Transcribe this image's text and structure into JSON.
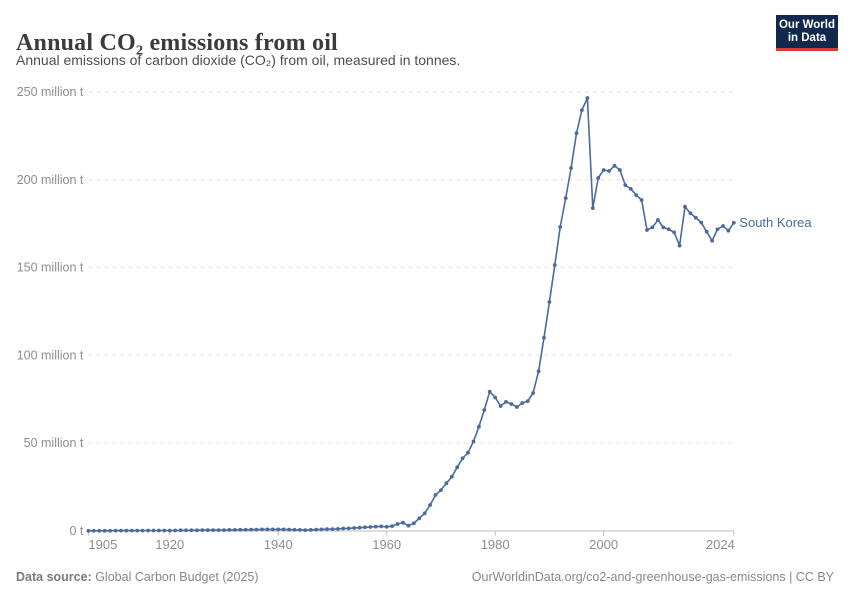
{
  "header": {
    "title": "Annual CO₂ emissions from oil",
    "subtitle": "Annual emissions of carbon dioxide (CO₂) from oil, measured in tonnes.",
    "logo": {
      "line1": "Our World",
      "line2": "in Data",
      "bg_color": "#12294d",
      "bar_color": "#dc3b33"
    }
  },
  "chart_data": {
    "type": "line",
    "title": "Annual CO₂ emissions from oil",
    "xlabel": "",
    "ylabel": "",
    "xlim": [
      1905,
      2024
    ],
    "ylim": [
      0,
      250
    ],
    "grid": true,
    "legend_position": "end-of-line",
    "x_ticks": [
      1905,
      1920,
      1940,
      1960,
      1980,
      2000,
      2024
    ],
    "y_ticks": [
      {
        "value": 0,
        "label": "0 t"
      },
      {
        "value": 50,
        "label": "50 million t"
      },
      {
        "value": 100,
        "label": "100 million t"
      },
      {
        "value": 150,
        "label": "150 million t"
      },
      {
        "value": 200,
        "label": "200 million t"
      },
      {
        "value": 250,
        "label": "250 million t"
      }
    ],
    "series": [
      {
        "name": "South Korea",
        "color": "#4c6a9c",
        "x": [
          1905,
          1906,
          1907,
          1908,
          1909,
          1910,
          1911,
          1912,
          1913,
          1914,
          1915,
          1916,
          1917,
          1918,
          1919,
          1920,
          1921,
          1922,
          1923,
          1924,
          1925,
          1926,
          1927,
          1928,
          1929,
          1930,
          1931,
          1932,
          1933,
          1934,
          1935,
          1936,
          1937,
          1938,
          1939,
          1940,
          1941,
          1942,
          1943,
          1944,
          1945,
          1946,
          1947,
          1948,
          1949,
          1950,
          1951,
          1952,
          1953,
          1954,
          1955,
          1956,
          1957,
          1958,
          1959,
          1960,
          1961,
          1962,
          1963,
          1964,
          1965,
          1966,
          1967,
          1968,
          1969,
          1970,
          1971,
          1972,
          1973,
          1974,
          1975,
          1976,
          1977,
          1978,
          1979,
          1980,
          1981,
          1982,
          1983,
          1984,
          1985,
          1986,
          1987,
          1988,
          1989,
          1990,
          1991,
          1992,
          1993,
          1994,
          1995,
          1996,
          1997,
          1998,
          1999,
          2000,
          2001,
          2002,
          2003,
          2004,
          2005,
          2006,
          2007,
          2008,
          2009,
          2010,
          2011,
          2012,
          2013,
          2014,
          2015,
          2016,
          2017,
          2018,
          2019,
          2020,
          2021,
          2022,
          2023,
          2024
        ],
        "values": [
          0.1,
          0.1,
          0.1,
          0.1,
          0.1,
          0.2,
          0.2,
          0.2,
          0.2,
          0.2,
          0.2,
          0.3,
          0.3,
          0.3,
          0.3,
          0.3,
          0.3,
          0.4,
          0.4,
          0.4,
          0.4,
          0.5,
          0.5,
          0.5,
          0.5,
          0.5,
          0.6,
          0.6,
          0.7,
          0.7,
          0.8,
          0.8,
          0.9,
          0.9,
          0.9,
          0.9,
          0.9,
          0.8,
          0.7,
          0.6,
          0.5,
          0.6,
          0.8,
          0.9,
          1.0,
          1.1,
          1.2,
          1.4,
          1.5,
          1.7,
          1.9,
          2.1,
          2.3,
          2.5,
          2.6,
          2.4,
          2.8,
          4.0,
          4.7,
          3.0,
          4.4,
          7.2,
          10.1,
          14.8,
          20.5,
          23.3,
          27.2,
          30.9,
          36.3,
          41.4,
          44.6,
          51.0,
          59.4,
          68.9,
          79.3,
          76.0,
          71.2,
          73.5,
          72.3,
          70.6,
          72.9,
          74.0,
          78.6,
          91.0,
          110.0,
          130.4,
          151.5,
          173.1,
          189.6,
          206.7,
          226.6,
          239.7,
          246.6,
          183.9,
          201.0,
          205.6,
          205.0,
          208.0,
          205.6,
          197.0,
          194.8,
          191.3,
          188.5,
          171.4,
          172.9,
          177.1,
          172.9,
          171.8,
          170.1,
          162.5,
          184.7,
          180.9,
          178.4,
          175.6,
          170.4,
          165.3,
          171.8,
          173.7,
          171.0,
          175.5
        ]
      }
    ],
    "colors": {
      "grid": "#e0e0e0",
      "axis": "#bcbcbc",
      "tick_text": "#8e8e8e"
    }
  },
  "footer": {
    "source_label": "Data source:",
    "source_value": " Global Carbon Budget (2025)",
    "link": "OurWorldinData.org/co2-and-greenhouse-gas-emissions",
    "separator": " | ",
    "license": "CC BY"
  }
}
